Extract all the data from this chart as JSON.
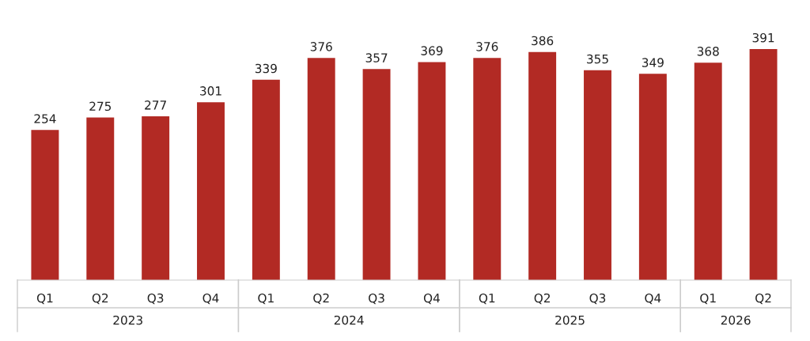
{
  "chart_data": {
    "type": "bar",
    "categories": [
      "Q1",
      "Q2",
      "Q3",
      "Q4",
      "Q1",
      "Q2",
      "Q3",
      "Q4",
      "Q1",
      "Q2",
      "Q3",
      "Q4",
      "Q1",
      "Q2"
    ],
    "values": [
      254,
      275,
      277,
      301,
      339,
      376,
      357,
      369,
      376,
      386,
      355,
      349,
      368,
      391
    ],
    "color": "#b22a24",
    "data_labels": true,
    "annotations": [
      "2023",
      "2024",
      "2025",
      "2026"
    ],
    "grid": false,
    "legend": false
  }
}
